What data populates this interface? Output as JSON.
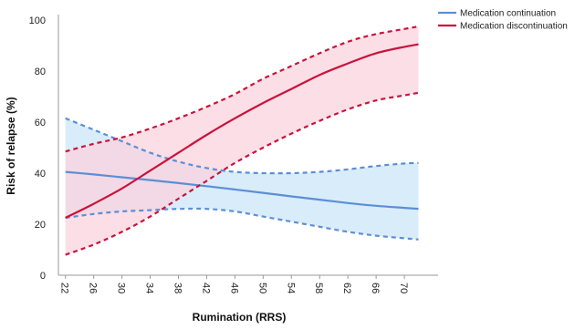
{
  "chart_data": {
    "type": "line",
    "xlabel": "Rumination (RRS)",
    "ylabel": "Risk of relapse (%)",
    "xlim": [
      21,
      74
    ],
    "ylim": [
      0,
      100
    ],
    "x_ticks": [
      22,
      26,
      30,
      34,
      38,
      42,
      46,
      50,
      54,
      58,
      62,
      66,
      70
    ],
    "y_ticks": [
      0,
      20,
      40,
      60,
      80,
      100
    ],
    "grid": false,
    "legend_position": "top-right",
    "series": [
      {
        "name": "Medication continuation",
        "color": "#5b8fd6",
        "band_color": "#d9ecfa",
        "x": [
          22,
          26,
          30,
          34,
          38,
          42,
          46,
          50,
          54,
          58,
          62,
          66,
          70,
          72
        ],
        "values": [
          40.5,
          39.5,
          38.4,
          37.3,
          36.1,
          34.9,
          33.6,
          32.3,
          30.9,
          29.6,
          28.3,
          27.2,
          26.4,
          26.0
        ],
        "lower": [
          22.5,
          24.0,
          25.0,
          25.5,
          26.0,
          26.0,
          25.0,
          23.0,
          21.0,
          19.0,
          17.0,
          15.5,
          14.5,
          14.0
        ],
        "upper": [
          61.5,
          57.0,
          52.5,
          48.0,
          44.5,
          42.0,
          40.5,
          40.0,
          40.0,
          40.5,
          41.5,
          42.8,
          43.8,
          44.0
        ]
      },
      {
        "name": "Medication discontinuation",
        "color": "#c8143c",
        "band_color": "#f9d3de",
        "x": [
          22,
          26,
          30,
          34,
          38,
          42,
          46,
          50,
          54,
          58,
          62,
          66,
          70,
          72
        ],
        "values": [
          22.5,
          28.0,
          34.0,
          41.0,
          48.0,
          55.0,
          61.5,
          67.5,
          73.0,
          78.5,
          83.0,
          87.0,
          89.5,
          90.5
        ],
        "lower": [
          8.0,
          12.0,
          17.0,
          23.0,
          30.0,
          37.0,
          44.0,
          50.0,
          55.5,
          60.5,
          65.0,
          68.5,
          70.5,
          71.5
        ],
        "upper": [
          48.5,
          51.5,
          54.0,
          57.5,
          61.5,
          66.0,
          71.0,
          77.0,
          82.0,
          87.0,
          91.5,
          94.5,
          96.5,
          97.5
        ]
      }
    ]
  }
}
